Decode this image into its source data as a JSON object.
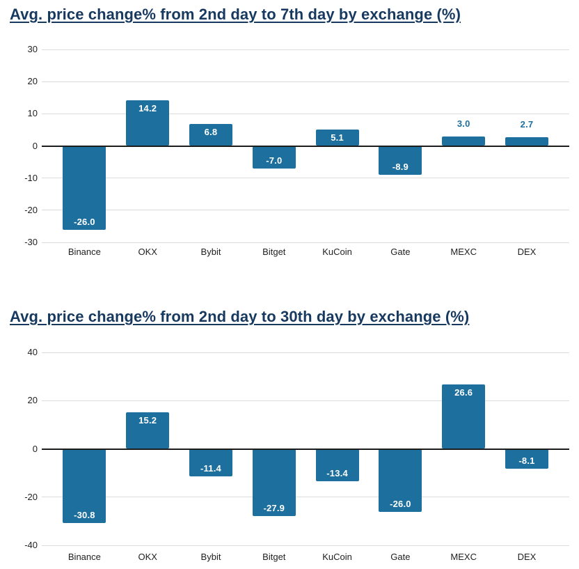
{
  "page": {
    "background": "#ffffff"
  },
  "chart_data": [
    {
      "type": "bar",
      "title": "Avg. price change% from 2nd day to 7th day by exchange (%)",
      "categories": [
        "Binance",
        "OKX",
        "Bybit",
        "Bitget",
        "KuCoin",
        "Gate",
        "MEXC",
        "DEX"
      ],
      "values": [
        -26.0,
        14.2,
        6.8,
        -7.0,
        5.1,
        -8.9,
        3.0,
        2.7
      ],
      "value_labels": [
        "-26.0",
        "14.2",
        "6.8",
        "-7.0",
        "5.1",
        "-8.9",
        "3.0",
        "2.7"
      ],
      "yticks": [
        30,
        20,
        10,
        0,
        -10,
        -20,
        -30
      ],
      "ylim": [
        -30,
        30
      ],
      "xlabel": "",
      "ylabel": "",
      "grid": true,
      "legend": false,
      "bar_color": "#1d6f9e",
      "inside_label_color": "#ffffff",
      "outside_label_color": "#1d6f9e",
      "title_color": "#17395f"
    },
    {
      "type": "bar",
      "title": "Avg. price change% from 2nd day to 30th day by exchange (%)",
      "categories": [
        "Binance",
        "OKX",
        "Bybit",
        "Bitget",
        "KuCoin",
        "Gate",
        "MEXC",
        "DEX"
      ],
      "values": [
        -30.8,
        15.2,
        -11.4,
        -27.9,
        -13.4,
        -26.0,
        26.6,
        -8.1
      ],
      "value_labels": [
        "-30.8",
        "15.2",
        "-11.4",
        "-27.9",
        "-13.4",
        "-26.0",
        "26.6",
        "-8.1"
      ],
      "yticks": [
        40,
        20,
        0,
        -20,
        -40
      ],
      "ylim": [
        -40,
        40
      ],
      "xlabel": "",
      "ylabel": "",
      "grid": true,
      "legend": false,
      "bar_color": "#1d6f9e",
      "inside_label_color": "#ffffff",
      "outside_label_color": "#1d6f9e",
      "title_color": "#17395f"
    }
  ]
}
